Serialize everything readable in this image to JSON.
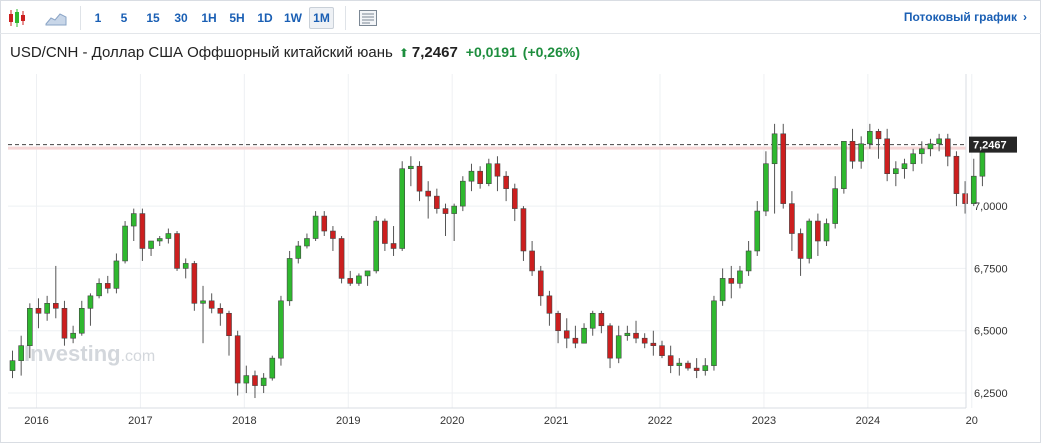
{
  "toolbar": {
    "intervals": [
      "1",
      "5",
      "15",
      "30",
      "1H",
      "5H",
      "1D",
      "1W",
      "1M"
    ],
    "active_interval": "1M",
    "stream_label": "Потоковый график"
  },
  "instrument": {
    "name": "USD/CNH - Доллар США Оффшорный китайский юань",
    "last": "7,2467",
    "change": "+0,0191",
    "change_pct": "(+0,26%)"
  },
  "watermark": {
    "brand": "Investing",
    "suffix": ".com"
  },
  "colors": {
    "up": "#2fb82f",
    "down": "#cc1f1f",
    "accent": "#1a5fb4",
    "price_tag": "#262626"
  },
  "chart_data": {
    "type": "candlestick",
    "interval": "monthly",
    "y_ticks": [
      "7,0000",
      "6,7500",
      "6,5000",
      "6,2500"
    ],
    "y_tick_values": [
      7.0,
      6.75,
      6.5,
      6.25
    ],
    "ylim": [
      6.19,
      7.53
    ],
    "x_labels": [
      "2016",
      "2017",
      "2018",
      "2019",
      "2020",
      "2021",
      "2022",
      "2023",
      "2024",
      "20"
    ],
    "x_label_month_index": [
      1,
      13,
      25,
      37,
      49,
      61,
      73,
      85,
      97,
      109
    ],
    "current_price": 7.2467,
    "current_price_label": "7,2467",
    "candles": [
      [
        6.34,
        6.42,
        6.31,
        6.38
      ],
      [
        6.38,
        6.48,
        6.32,
        6.44
      ],
      [
        6.44,
        6.61,
        6.39,
        6.59
      ],
      [
        6.59,
        6.63,
        6.51,
        6.57
      ],
      [
        6.57,
        6.64,
        6.54,
        6.61
      ],
      [
        6.61,
        6.76,
        6.55,
        6.59
      ],
      [
        6.59,
        6.62,
        6.44,
        6.47
      ],
      [
        6.47,
        6.52,
        6.45,
        6.49
      ],
      [
        6.49,
        6.62,
        6.48,
        6.59
      ],
      [
        6.59,
        6.65,
        6.52,
        6.64
      ],
      [
        6.64,
        6.71,
        6.63,
        6.69
      ],
      [
        6.69,
        6.72,
        6.65,
        6.67
      ],
      [
        6.67,
        6.81,
        6.65,
        6.78
      ],
      [
        6.78,
        6.94,
        6.77,
        6.92
      ],
      [
        6.92,
        6.99,
        6.86,
        6.97
      ],
      [
        6.97,
        6.99,
        6.78,
        6.83
      ],
      [
        6.83,
        6.86,
        6.8,
        6.86
      ],
      [
        6.86,
        6.88,
        6.84,
        6.87
      ],
      [
        6.87,
        6.91,
        6.85,
        6.89
      ],
      [
        6.89,
        6.9,
        6.74,
        6.75
      ],
      [
        6.75,
        6.79,
        6.71,
        6.77
      ],
      [
        6.77,
        6.78,
        6.58,
        6.61
      ],
      [
        6.61,
        6.68,
        6.45,
        6.62
      ],
      [
        6.62,
        6.65,
        6.57,
        6.59
      ],
      [
        6.59,
        6.61,
        6.52,
        6.57
      ],
      [
        6.57,
        6.58,
        6.4,
        6.48
      ],
      [
        6.48,
        6.5,
        6.24,
        6.29
      ],
      [
        6.29,
        6.36,
        6.25,
        6.32
      ],
      [
        6.32,
        6.34,
        6.23,
        6.28
      ],
      [
        6.28,
        6.33,
        6.25,
        6.31
      ],
      [
        6.31,
        6.4,
        6.3,
        6.39
      ],
      [
        6.39,
        6.64,
        6.36,
        6.62
      ],
      [
        6.62,
        6.82,
        6.6,
        6.79
      ],
      [
        6.79,
        6.86,
        6.77,
        6.84
      ],
      [
        6.84,
        6.89,
        6.83,
        6.87
      ],
      [
        6.87,
        6.98,
        6.86,
        6.96
      ],
      [
        6.96,
        6.98,
        6.88,
        6.9
      ],
      [
        6.9,
        6.92,
        6.82,
        6.87
      ],
      [
        6.87,
        6.88,
        6.69,
        6.71
      ],
      [
        6.71,
        6.74,
        6.68,
        6.69
      ],
      [
        6.69,
        6.73,
        6.68,
        6.72
      ],
      [
        6.72,
        6.74,
        6.68,
        6.74
      ],
      [
        6.74,
        6.96,
        6.73,
        6.94
      ],
      [
        6.94,
        6.95,
        6.82,
        6.85
      ],
      [
        6.85,
        6.92,
        6.8,
        6.83
      ],
      [
        6.83,
        7.18,
        6.82,
        7.15
      ],
      [
        7.15,
        7.2,
        7.08,
        7.16
      ],
      [
        7.16,
        7.18,
        7.02,
        7.06
      ],
      [
        7.06,
        7.1,
        6.95,
        7.04
      ],
      [
        7.04,
        7.07,
        6.97,
        6.99
      ],
      [
        6.99,
        7.01,
        6.88,
        6.97
      ],
      [
        6.97,
        7.01,
        6.86,
        7.0
      ],
      [
        7.0,
        7.12,
        6.98,
        7.1
      ],
      [
        7.1,
        7.17,
        7.06,
        7.14
      ],
      [
        7.14,
        7.16,
        7.07,
        7.09
      ],
      [
        7.09,
        7.19,
        7.08,
        7.17
      ],
      [
        7.17,
        7.2,
        7.06,
        7.12
      ],
      [
        7.12,
        7.14,
        7.02,
        7.07
      ],
      [
        7.07,
        7.09,
        6.94,
        6.99
      ],
      [
        6.99,
        7.0,
        6.78,
        6.82
      ],
      [
        6.82,
        6.86,
        6.72,
        6.74
      ],
      [
        6.74,
        6.76,
        6.6,
        6.64
      ],
      [
        6.64,
        6.66,
        6.52,
        6.57
      ],
      [
        6.57,
        6.58,
        6.45,
        6.5
      ],
      [
        6.5,
        6.55,
        6.43,
        6.47
      ],
      [
        6.47,
        6.52,
        6.43,
        6.45
      ],
      [
        6.45,
        6.53,
        6.45,
        6.51
      ],
      [
        6.51,
        6.58,
        6.48,
        6.57
      ],
      [
        6.57,
        6.58,
        6.49,
        6.52
      ],
      [
        6.52,
        6.53,
        6.35,
        6.39
      ],
      [
        6.39,
        6.52,
        6.37,
        6.48
      ],
      [
        6.48,
        6.52,
        6.46,
        6.49
      ],
      [
        6.49,
        6.54,
        6.45,
        6.47
      ],
      [
        6.47,
        6.49,
        6.43,
        6.45
      ],
      [
        6.45,
        6.5,
        6.4,
        6.44
      ],
      [
        6.44,
        6.46,
        6.39,
        6.4
      ],
      [
        6.4,
        6.44,
        6.33,
        6.36
      ],
      [
        6.36,
        6.39,
        6.32,
        6.37
      ],
      [
        6.37,
        6.38,
        6.34,
        6.35
      ],
      [
        6.35,
        6.39,
        6.31,
        6.34
      ],
      [
        6.34,
        6.39,
        6.32,
        6.36
      ],
      [
        6.36,
        6.64,
        6.34,
        6.62
      ],
      [
        6.62,
        6.75,
        6.6,
        6.71
      ],
      [
        6.71,
        6.76,
        6.63,
        6.69
      ],
      [
        6.69,
        6.76,
        6.67,
        6.74
      ],
      [
        6.74,
        6.86,
        6.72,
        6.82
      ],
      [
        6.82,
        7.02,
        6.8,
        6.98
      ],
      [
        6.98,
        7.22,
        6.96,
        7.17
      ],
      [
        7.17,
        7.33,
        6.97,
        7.29
      ],
      [
        7.29,
        7.33,
        6.99,
        7.01
      ],
      [
        7.01,
        7.06,
        6.82,
        6.89
      ],
      [
        6.89,
        6.91,
        6.72,
        6.79
      ],
      [
        6.79,
        6.95,
        6.77,
        6.94
      ],
      [
        6.94,
        6.97,
        6.8,
        6.86
      ],
      [
        6.86,
        6.95,
        6.84,
        6.93
      ],
      [
        6.93,
        7.12,
        6.91,
        7.07
      ],
      [
        7.07,
        7.26,
        7.05,
        7.26
      ],
      [
        7.26,
        7.31,
        7.15,
        7.18
      ],
      [
        7.18,
        7.28,
        7.15,
        7.25
      ],
      [
        7.25,
        7.33,
        7.23,
        7.3
      ],
      [
        7.3,
        7.31,
        7.19,
        7.27
      ],
      [
        7.27,
        7.31,
        7.1,
        7.13
      ],
      [
        7.13,
        7.18,
        7.08,
        7.15
      ],
      [
        7.15,
        7.19,
        7.11,
        7.17
      ],
      [
        7.17,
        7.23,
        7.14,
        7.21
      ],
      [
        7.21,
        7.26,
        7.17,
        7.23
      ],
      [
        7.23,
        7.27,
        7.2,
        7.25
      ],
      [
        7.25,
        7.29,
        7.22,
        7.27
      ],
      [
        7.27,
        7.29,
        7.16,
        7.2
      ],
      [
        7.2,
        7.22,
        7.0,
        7.05
      ],
      [
        7.05,
        7.1,
        6.97,
        7.01
      ],
      [
        7.01,
        7.19,
        7.0,
        7.12
      ],
      [
        7.12,
        7.25,
        7.08,
        7.2467
      ]
    ]
  }
}
